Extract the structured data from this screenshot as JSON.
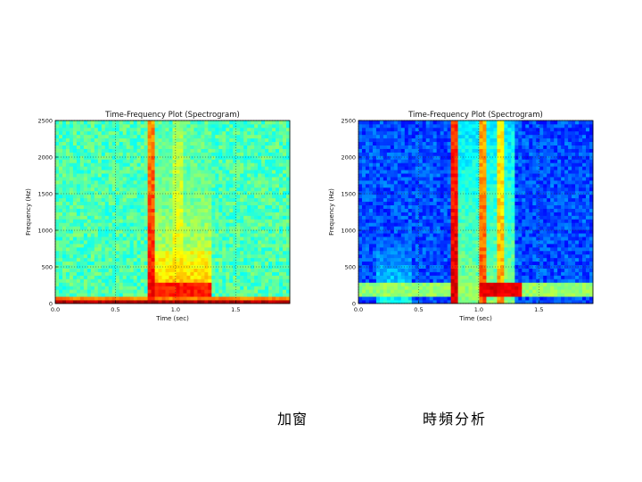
{
  "captions": {
    "left": "加窗",
    "right": "時頻分析"
  },
  "chart_data": [
    {
      "type": "heatmap",
      "title": "Time-Frequency Plot (Spectrogram)",
      "xlabel": "Time (sec)",
      "ylabel": "Frequency (Hz)",
      "xlim": [
        0,
        1.95
      ],
      "ylim": [
        0,
        2500
      ],
      "x_ticks": [
        0.0,
        0.5,
        1.0,
        1.5
      ],
      "x_tick_labels": [
        "0.0",
        "0.5",
        "1.0",
        "1.5"
      ],
      "y_ticks": [
        0,
        500,
        1000,
        1500,
        2000,
        2500
      ],
      "y_tick_labels": [
        "0",
        "500",
        "1000",
        "1500",
        "2000",
        "2500"
      ],
      "grid": true,
      "colormap": "jet",
      "background_level": 0.45,
      "features": [
        {
          "kind": "band",
          "f_lo": 0,
          "f_hi": 40,
          "level": 0.95
        },
        {
          "kind": "band",
          "f_lo": 40,
          "f_hi": 90,
          "level": 0.75
        },
        {
          "kind": "column",
          "t_lo": 0.77,
          "t_hi": 0.83,
          "f_hi": 2500,
          "level": 0.88,
          "decay": 0.15
        },
        {
          "kind": "column",
          "t_lo": 0.83,
          "t_hi": 1.3,
          "f_hi": 700,
          "level": 0.72,
          "decay": 0.4
        },
        {
          "kind": "column",
          "t_lo": 0.83,
          "t_hi": 1.3,
          "f_hi": 2500,
          "level": 0.6,
          "decay": 0.2
        },
        {
          "kind": "column",
          "t_lo": 0.98,
          "t_hi": 1.05,
          "f_hi": 2500,
          "level": 0.66,
          "decay": 0.15
        },
        {
          "kind": "spot",
          "t_lo": 0.8,
          "t_hi": 1.3,
          "f_lo": 80,
          "f_hi": 300,
          "level": 0.85
        }
      ]
    },
    {
      "type": "heatmap",
      "title": "Time-Frequency Plot (Spectrogram)",
      "xlabel": "Time (sec)",
      "ylabel": "Frequency (Hz)",
      "xlim": [
        0,
        1.95
      ],
      "ylim": [
        0,
        2500
      ],
      "x_ticks": [
        0.0,
        0.5,
        1.0,
        1.5
      ],
      "x_tick_labels": [
        "0.0",
        "0.5",
        "1.0",
        "1.5"
      ],
      "y_ticks": [
        0,
        500,
        1000,
        1500,
        2000,
        2500
      ],
      "y_tick_labels": [
        "0",
        "500",
        "1000",
        "1500",
        "2000",
        "2500"
      ],
      "grid": true,
      "colormap": "jet",
      "background_level": 0.2,
      "features": [
        {
          "kind": "band",
          "f_lo": 100,
          "f_hi": 300,
          "level": 0.52
        },
        {
          "kind": "band",
          "f_lo": 120,
          "f_hi": 170,
          "level": 0.35
        },
        {
          "kind": "column",
          "t_lo": 0.76,
          "t_hi": 0.84,
          "f_hi": 2500,
          "level": 0.92,
          "decay": 0.1
        },
        {
          "kind": "column",
          "t_lo": 0.84,
          "t_hi": 1.3,
          "f_hi": 2500,
          "level": 0.5,
          "decay": 0.15
        },
        {
          "kind": "column",
          "t_lo": 1.0,
          "t_hi": 1.06,
          "f_hi": 2500,
          "level": 0.8,
          "decay": 0.1
        },
        {
          "kind": "column",
          "t_lo": 1.15,
          "t_hi": 1.2,
          "f_hi": 2500,
          "level": 0.72,
          "decay": 0.1
        },
        {
          "kind": "column",
          "t_lo": 0.15,
          "t_hi": 0.45,
          "f_hi": 900,
          "level": 0.38,
          "decay": 0.5
        },
        {
          "kind": "spot",
          "t_lo": 1.0,
          "t_hi": 1.35,
          "f_lo": 100,
          "f_hi": 300,
          "level": 0.9
        }
      ]
    }
  ]
}
